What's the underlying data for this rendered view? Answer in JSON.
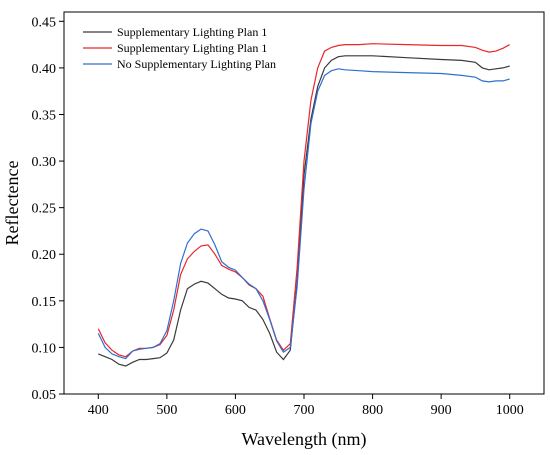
{
  "chart_data": {
    "type": "line",
    "xlabel": "Wavelength (nm)",
    "ylabel": "Reflectence",
    "xlim": [
      350,
      1050
    ],
    "ylim": [
      0.05,
      0.46
    ],
    "xticks": [
      400,
      500,
      600,
      700,
      800,
      900,
      1000
    ],
    "yticks": [
      0.05,
      0.1,
      0.15,
      0.2,
      0.25,
      0.3,
      0.35,
      0.4,
      0.45
    ],
    "ytick_labels": [
      "0.05",
      "0.10",
      "0.15",
      "0.20",
      "0.25",
      "0.30",
      "0.35",
      "0.40",
      "0.45"
    ],
    "legend_position": "top-left",
    "series": [
      {
        "name": "Supplementary Lighting Plan 1",
        "color": "#3a3a3a",
        "x": [
          400,
          410,
          420,
          430,
          440,
          450,
          460,
          470,
          480,
          490,
          500,
          510,
          520,
          530,
          540,
          550,
          560,
          570,
          580,
          590,
          600,
          610,
          620,
          630,
          640,
          650,
          660,
          670,
          680,
          690,
          700,
          710,
          720,
          730,
          740,
          750,
          760,
          780,
          800,
          850,
          900,
          930,
          950,
          960,
          970,
          980,
          990,
          1000
        ],
        "y": [
          0.093,
          0.09,
          0.087,
          0.082,
          0.08,
          0.084,
          0.087,
          0.087,
          0.088,
          0.089,
          0.094,
          0.108,
          0.14,
          0.163,
          0.168,
          0.171,
          0.169,
          0.163,
          0.157,
          0.153,
          0.152,
          0.15,
          0.143,
          0.14,
          0.13,
          0.115,
          0.095,
          0.087,
          0.097,
          0.17,
          0.285,
          0.345,
          0.38,
          0.4,
          0.408,
          0.412,
          0.413,
          0.413,
          0.413,
          0.411,
          0.409,
          0.408,
          0.406,
          0.4,
          0.398,
          0.399,
          0.4,
          0.402
        ]
      },
      {
        "name": "Supplementary Lighting Plan 1",
        "color": "#e8262b",
        "x": [
          400,
          410,
          420,
          430,
          440,
          450,
          460,
          470,
          480,
          490,
          500,
          510,
          520,
          530,
          540,
          550,
          560,
          570,
          580,
          590,
          600,
          610,
          620,
          630,
          640,
          650,
          660,
          670,
          680,
          690,
          700,
          710,
          720,
          730,
          740,
          750,
          760,
          780,
          800,
          850,
          900,
          930,
          950,
          960,
          970,
          980,
          990,
          1000
        ],
        "y": [
          0.12,
          0.105,
          0.097,
          0.092,
          0.09,
          0.096,
          0.099,
          0.099,
          0.1,
          0.103,
          0.113,
          0.14,
          0.178,
          0.195,
          0.203,
          0.209,
          0.21,
          0.2,
          0.188,
          0.184,
          0.181,
          0.175,
          0.167,
          0.163,
          0.155,
          0.131,
          0.108,
          0.097,
          0.104,
          0.185,
          0.3,
          0.365,
          0.4,
          0.418,
          0.422,
          0.424,
          0.425,
          0.425,
          0.426,
          0.425,
          0.424,
          0.424,
          0.422,
          0.419,
          0.417,
          0.418,
          0.421,
          0.425
        ]
      },
      {
        "name": "No Supplementary Lighting Plan",
        "color": "#2f6fd0",
        "x": [
          400,
          410,
          420,
          430,
          440,
          450,
          460,
          470,
          480,
          490,
          500,
          510,
          520,
          530,
          540,
          550,
          560,
          570,
          580,
          590,
          600,
          610,
          620,
          630,
          640,
          650,
          660,
          670,
          680,
          690,
          700,
          710,
          720,
          730,
          740,
          750,
          760,
          780,
          800,
          850,
          900,
          930,
          950,
          960,
          970,
          980,
          990,
          1000
        ],
        "y": [
          0.115,
          0.1,
          0.093,
          0.09,
          0.088,
          0.096,
          0.098,
          0.099,
          0.1,
          0.104,
          0.118,
          0.15,
          0.19,
          0.212,
          0.222,
          0.227,
          0.225,
          0.21,
          0.192,
          0.186,
          0.183,
          0.175,
          0.168,
          0.163,
          0.15,
          0.13,
          0.107,
          0.095,
          0.1,
          0.165,
          0.27,
          0.34,
          0.375,
          0.392,
          0.397,
          0.399,
          0.398,
          0.397,
          0.396,
          0.395,
          0.394,
          0.392,
          0.39,
          0.386,
          0.385,
          0.386,
          0.386,
          0.388
        ]
      }
    ]
  }
}
